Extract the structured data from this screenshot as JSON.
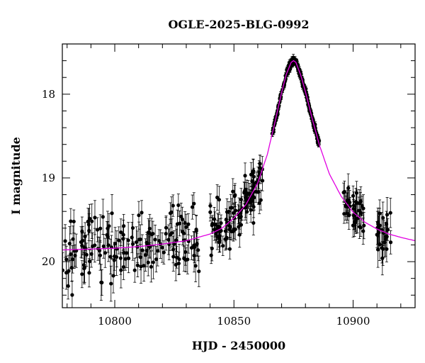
{
  "chart_data": {
    "type": "scatter",
    "title": "OGLE-2025-BLG-0992",
    "xlabel": "HJD - 2450000",
    "ylabel": "I magnitude",
    "xlim": [
      10778,
      10926
    ],
    "ylim": [
      20.55,
      17.4
    ],
    "y_inverted": true,
    "x_ticks": [
      10800,
      10850,
      10900
    ],
    "y_ticks": [
      18,
      19,
      20
    ],
    "grid": false,
    "legend": "none",
    "colors": {
      "points": "#000000",
      "model": "#e100e1",
      "axes": "#000000"
    },
    "model": {
      "name": "",
      "x": [
        10778,
        10790,
        10800,
        10810,
        10820,
        10830,
        10840,
        10845,
        10850,
        10855,
        10860,
        10864,
        10867,
        10870,
        10872,
        10874,
        10875,
        10876,
        10878,
        10880,
        10883,
        10886,
        10890,
        10895,
        10900,
        10905,
        10910,
        10915,
        10920,
        10926
      ],
      "y": [
        19.86,
        19.85,
        19.84,
        19.82,
        19.79,
        19.75,
        19.67,
        19.6,
        19.48,
        19.32,
        19.06,
        18.72,
        18.36,
        17.98,
        17.76,
        17.62,
        17.6,
        17.62,
        17.77,
        17.97,
        18.31,
        18.62,
        18.95,
        19.22,
        19.41,
        19.53,
        19.61,
        19.67,
        19.71,
        19.75
      ]
    },
    "segments": [
      {
        "x_start": 10778,
        "x_end": 10792,
        "count": 40,
        "scatter": 0.22,
        "err": 0.17
      },
      {
        "x_start": 10792,
        "x_end": 10800,
        "count": 22,
        "scatter": 0.23,
        "err": 0.18
      },
      {
        "x_start": 10800,
        "x_end": 10812,
        "count": 30,
        "scatter": 0.22,
        "err": 0.18
      },
      {
        "x_start": 10812,
        "x_end": 10836,
        "count": 70,
        "scatter": 0.2,
        "err": 0.16
      },
      {
        "x_start": 10840,
        "x_end": 10862,
        "count": 110,
        "scatter": 0.16,
        "err": 0.13
      },
      {
        "x_start": 10866,
        "x_end": 10886,
        "count": 220,
        "scatter": 0.025,
        "err": 0.03
      },
      {
        "x_start": 10896,
        "x_end": 10905,
        "count": 40,
        "scatter": 0.12,
        "err": 0.14
      },
      {
        "x_start": 10910,
        "x_end": 10916,
        "count": 26,
        "scatter": 0.15,
        "err": 0.17
      }
    ]
  }
}
